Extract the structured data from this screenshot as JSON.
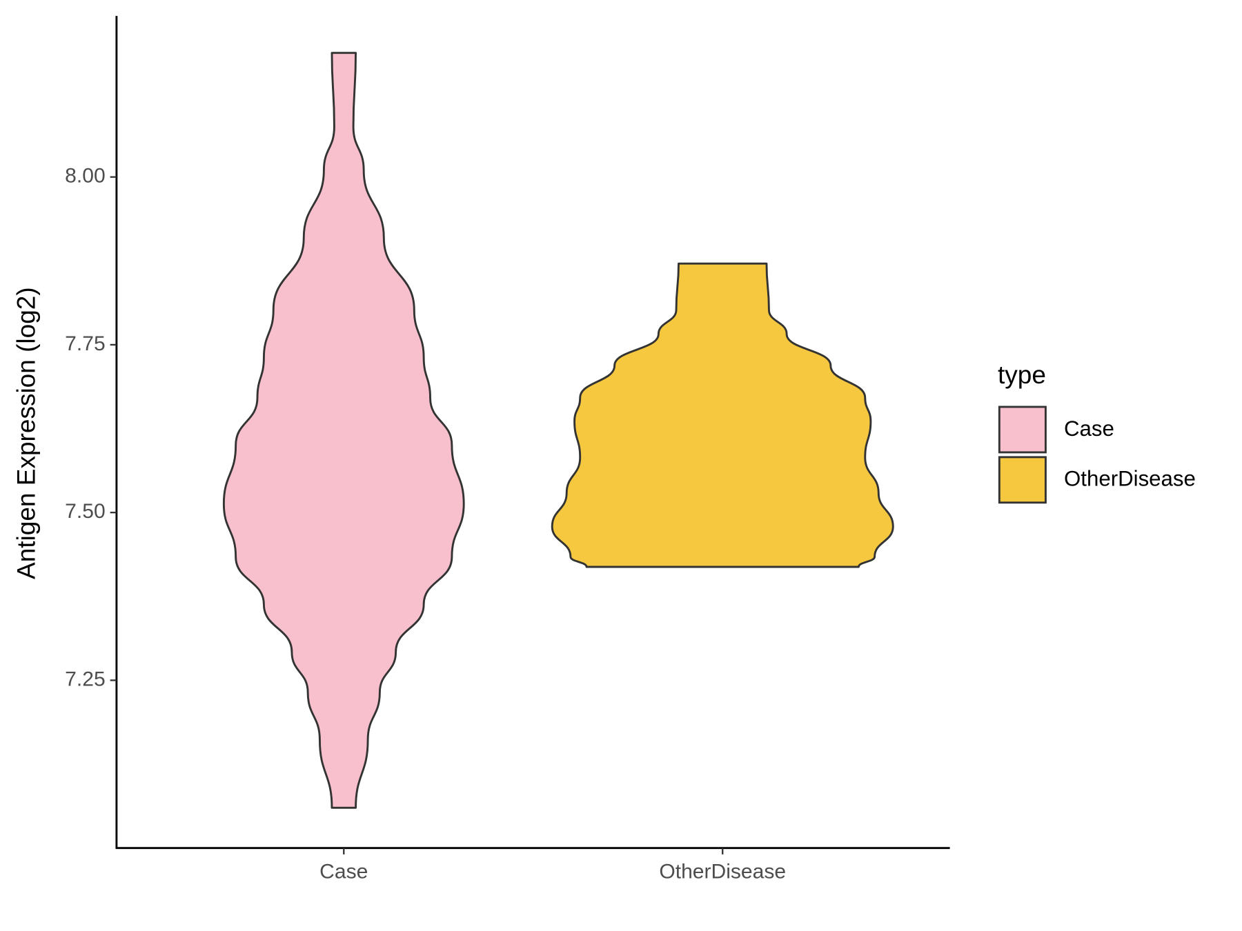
{
  "chart_data": {
    "type": "violin",
    "y_label": "Antigen Expression (log2)",
    "categories": [
      "Case",
      "OtherDisease"
    ],
    "ylim": [
      7.0,
      8.24
    ],
    "yticks": [
      {
        "value": 7.25,
        "label": "7.25"
      },
      {
        "value": 7.5,
        "label": "7.50"
      },
      {
        "value": 7.75,
        "label": "7.75"
      },
      {
        "value": 8.0,
        "label": "8.00"
      }
    ],
    "legend_title": "type",
    "legend_position": "right",
    "series": [
      {
        "name": "Case",
        "color": "#f7c0cc",
        "y": [
          8.185,
          8.075,
          8.01,
          7.909,
          7.802,
          7.731,
          7.671,
          7.6,
          7.513,
          7.434,
          7.363,
          7.292,
          7.232,
          7.161,
          7.06
        ],
        "density": [
          0.07,
          0.056,
          0.117,
          0.235,
          0.413,
          0.469,
          0.507,
          0.634,
          0.704,
          0.634,
          0.469,
          0.305,
          0.211,
          0.141,
          0.07
        ]
      },
      {
        "name": "OtherDisease",
        "color": "#f5c840",
        "y": [
          7.871,
          7.802,
          7.766,
          7.719,
          7.671,
          7.636,
          7.582,
          7.529,
          7.479,
          7.434,
          7.419
        ],
        "density": [
          0.258,
          0.272,
          0.376,
          0.634,
          0.836,
          0.869,
          0.836,
          0.915,
          1,
          0.892,
          0.798
        ]
      }
    ]
  }
}
